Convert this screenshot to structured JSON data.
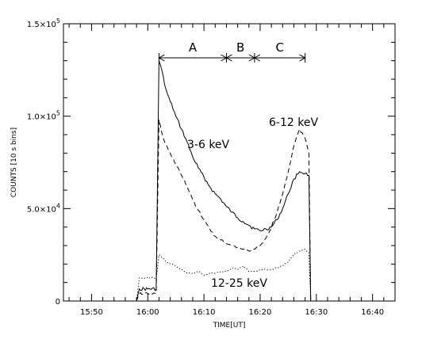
{
  "chart_data": {
    "type": "line",
    "title": "",
    "xlabel": "TIME[UT]",
    "ylabel": "COUNTS [10 s bins]",
    "xlim": [
      "15:45",
      "16:44"
    ],
    "ylim": [
      0,
      150000
    ],
    "x_ticks": [
      "15:50",
      "16:00",
      "16:10",
      "16:20",
      "16:30",
      "16:40"
    ],
    "y_ticks": [
      {
        "mantissa": "0",
        "exponent": "",
        "value": 0
      },
      {
        "mantissa": "5.0×10",
        "exponent": "4",
        "value": 50000
      },
      {
        "mantissa": "1.0×10",
        "exponent": "5",
        "value": 100000
      },
      {
        "mantissa": "1.5×10",
        "exponent": "5",
        "value": 150000
      }
    ],
    "grid": false,
    "series": [
      {
        "name": "3-6 keV",
        "style": "solid",
        "x": [
          "15:58",
          "15:58:30",
          "16:00",
          "16:01:30",
          "16:02",
          "16:02:30",
          "16:03",
          "16:03:30",
          "16:04",
          "16:05",
          "16:06",
          "16:07",
          "16:08",
          "16:09",
          "16:10",
          "16:11",
          "16:12",
          "16:13",
          "16:14",
          "16:15",
          "16:16",
          "16:17",
          "16:18",
          "16:19",
          "16:20",
          "16:21",
          "16:22",
          "16:23",
          "16:24",
          "16:25",
          "16:26",
          "16:27",
          "16:28",
          "16:28:40",
          "16:29"
        ],
        "values": [
          0,
          6500,
          6500,
          6500,
          130000,
          125000,
          117000,
          112000,
          108000,
          100000,
          93000,
          86000,
          78000,
          72000,
          67000,
          62000,
          58000,
          55000,
          51000,
          48000,
          45000,
          43000,
          41000,
          39000,
          38000,
          39000,
          40000,
          44000,
          50000,
          58000,
          66000,
          70000,
          69000,
          68000,
          0
        ]
      },
      {
        "name": "6-12 keV",
        "style": "dashed",
        "x": [
          "15:58",
          "15:58:30",
          "16:00",
          "16:01:30",
          "16:02",
          "16:02:30",
          "16:03",
          "16:03:30",
          "16:04",
          "16:05",
          "16:06",
          "16:07",
          "16:08",
          "16:09",
          "16:10",
          "16:11",
          "16:12",
          "16:13",
          "16:14",
          "16:15",
          "16:16",
          "16:17",
          "16:18",
          "16:19",
          "16:20",
          "16:21",
          "16:22",
          "16:23",
          "16:24",
          "16:25",
          "16:26",
          "16:27",
          "16:28",
          "16:28:40",
          "16:29"
        ],
        "values": [
          0,
          4000,
          4000,
          4000,
          98000,
          91000,
          86000,
          83000,
          80000,
          74000,
          68000,
          62000,
          55000,
          49000,
          44000,
          39000,
          35000,
          33000,
          31000,
          30000,
          29000,
          28000,
          27000,
          28000,
          30000,
          34000,
          40000,
          48000,
          58000,
          70000,
          84000,
          93000,
          88000,
          80000,
          0
        ]
      },
      {
        "name": "12-25 keV",
        "style": "dotted",
        "x": [
          "15:58",
          "15:58:30",
          "16:00",
          "16:01:30",
          "16:02",
          "16:03",
          "16:04",
          "16:05",
          "16:06",
          "16:07",
          "16:08",
          "16:09",
          "16:10",
          "16:11",
          "16:12",
          "16:13",
          "16:14",
          "16:15",
          "16:16",
          "16:17",
          "16:18",
          "16:19",
          "16:20",
          "16:21",
          "16:22",
          "16:23",
          "16:24",
          "16:25",
          "16:26",
          "16:27",
          "16:28",
          "16:28:40",
          "16:29"
        ],
        "values": [
          0,
          12500,
          12500,
          12500,
          25000,
          22000,
          20000,
          19000,
          17000,
          15000,
          15000,
          16000,
          14000,
          15000,
          15000,
          16000,
          16000,
          18000,
          17000,
          19000,
          16000,
          16000,
          17000,
          17000,
          17000,
          18000,
          19000,
          21000,
          25000,
          27000,
          28000,
          26000,
          0
        ]
      }
    ],
    "phases": {
      "labels": [
        "A",
        "B",
        "C"
      ],
      "boundaries": [
        "16:02",
        "16:14",
        "16:19",
        "16:28"
      ]
    }
  }
}
